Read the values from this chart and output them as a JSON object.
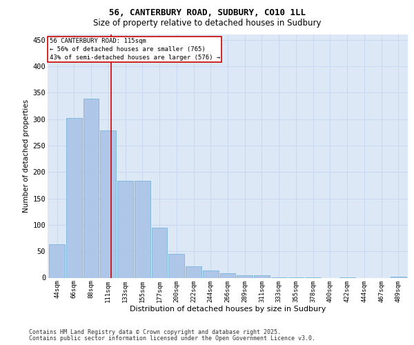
{
  "title1": "56, CANTERBURY ROAD, SUDBURY, CO10 1LL",
  "title2": "Size of property relative to detached houses in Sudbury",
  "xlabel": "Distribution of detached houses by size in Sudbury",
  "ylabel": "Number of detached properties",
  "categories": [
    "44sqm",
    "66sqm",
    "88sqm",
    "111sqm",
    "133sqm",
    "155sqm",
    "177sqm",
    "200sqm",
    "222sqm",
    "244sqm",
    "266sqm",
    "289sqm",
    "311sqm",
    "333sqm",
    "355sqm",
    "378sqm",
    "400sqm",
    "422sqm",
    "444sqm",
    "467sqm",
    "489sqm"
  ],
  "values": [
    63,
    302,
    338,
    278,
    184,
    183,
    94,
    45,
    22,
    14,
    8,
    5,
    4,
    1,
    1,
    1,
    0,
    1,
    0,
    0,
    2
  ],
  "bar_color": "#aec6e8",
  "bar_edge_color": "#6baed6",
  "grid_color": "#c8d8ee",
  "background_color": "#dce8f5",
  "property_label": "56 CANTERBURY ROAD: 115sqm",
  "annotation_line1": "← 56% of detached houses are smaller (765)",
  "annotation_line2": "43% of semi-detached houses are larger (576) →",
  "vline_color": "#cc0000",
  "vline_x": 3.18,
  "annotation_box_color": "#cc0000",
  "ylim": [
    0,
    460
  ],
  "yticks": [
    0,
    50,
    100,
    150,
    200,
    250,
    300,
    350,
    400,
    450
  ],
  "footnote1": "Contains HM Land Registry data © Crown copyright and database right 2025.",
  "footnote2": "Contains public sector information licensed under the Open Government Licence v3.0."
}
